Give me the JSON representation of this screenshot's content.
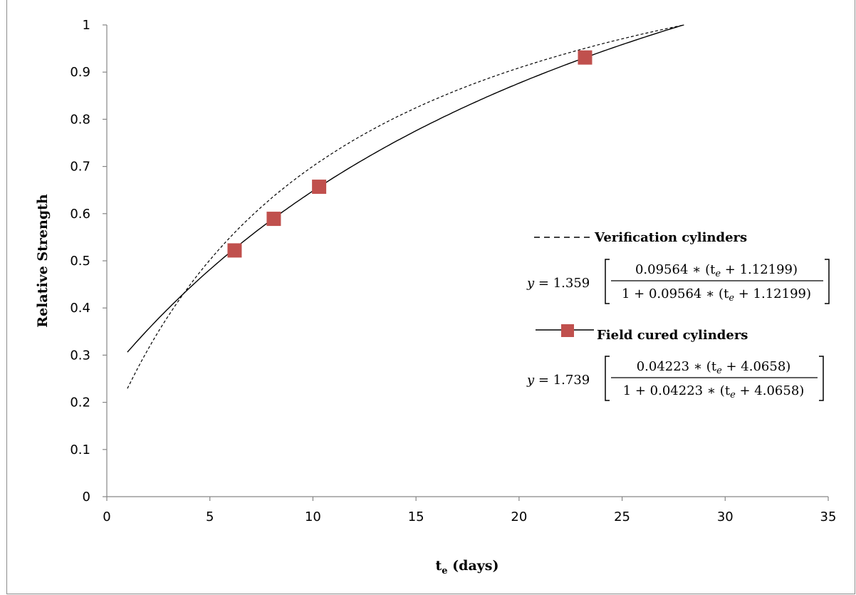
{
  "chart_data": {
    "type": "scatter",
    "title": "",
    "xlabel": "t",
    "xlabel_sub": "e",
    "xlabel_unit": " (days)",
    "ylabel": "Relative Strength",
    "xlim": [
      0,
      35
    ],
    "ylim": [
      0,
      1
    ],
    "xticks": [
      0,
      5,
      10,
      15,
      20,
      25,
      30,
      35
    ],
    "yticks": [
      0,
      0.1,
      0.2,
      0.3,
      0.4,
      0.5,
      0.6,
      0.7,
      0.8,
      0.9,
      1
    ],
    "grid": false,
    "legend_placement": "right",
    "series": [
      {
        "name": "Verification cylinders",
        "kind": "line",
        "line_style": "dashed",
        "color": "#000000",
        "model": {
          "A": 1.359,
          "k": 0.09564,
          "t0": 1.12199
        },
        "x_range": [
          1,
          28
        ],
        "equation": {
          "lhs": "y",
          "coef": "1.359",
          "numerator": "0.09564 ∗ (t",
          "numerator_end": " + 1.12199)",
          "denominator": "1 + 0.09564 ∗ (t",
          "denominator_end": " + 1.12199)",
          "sub": "e"
        }
      },
      {
        "name": "Field cured cylinders",
        "kind": "line+markers",
        "line_style": "solid",
        "color": "#000000",
        "marker_color": "#c0504d",
        "model": {
          "A": 1.739,
          "k": 0.04223,
          "t0": 4.0658
        },
        "x_range": [
          1,
          28
        ],
        "points": [
          {
            "x": 6.2,
            "y": 0.522
          },
          {
            "x": 8.1,
            "y": 0.589
          },
          {
            "x": 10.3,
            "y": 0.657
          },
          {
            "x": 23.2,
            "y": 0.931
          }
        ],
        "equation": {
          "lhs": "y",
          "coef": "1.739",
          "numerator": "0.04223 ∗ (t",
          "numerator_end": " + 4.0658)",
          "denominator": "1 + 0.04223 ∗ (t",
          "denominator_end": " + 4.0658)",
          "sub": "e"
        }
      }
    ]
  }
}
